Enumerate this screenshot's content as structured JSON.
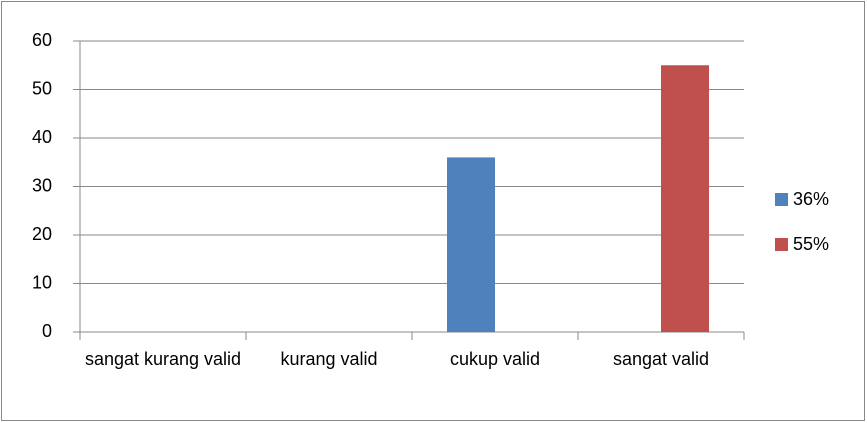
{
  "chart_data": {
    "type": "bar",
    "categories": [
      "sangat kurang valid",
      "kurang valid",
      "cukup valid",
      "sangat valid"
    ],
    "series": [
      {
        "name": "36%",
        "color": "#4f81bd",
        "values": [
          0,
          0,
          36,
          0
        ]
      },
      {
        "name": "55%",
        "color": "#c0504d",
        "values": [
          0,
          0,
          0,
          55
        ]
      }
    ],
    "ylim": [
      0,
      60
    ],
    "yticks": [
      0,
      10,
      20,
      30,
      40,
      50,
      60
    ],
    "grid": true,
    "legend": "right"
  }
}
